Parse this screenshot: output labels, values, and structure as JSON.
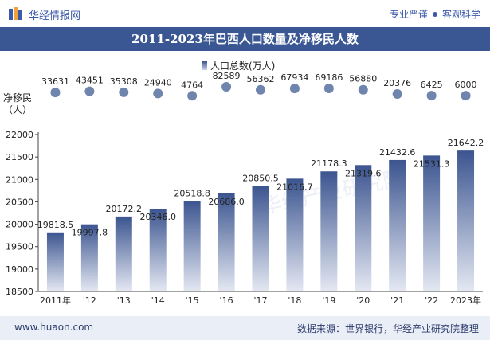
{
  "header": {
    "brand": "华经情报网",
    "slogan_left": "专业严谨",
    "slogan_right": "客观科学"
  },
  "title": "2011-2023年巴西人口数量及净移民人数",
  "footer": {
    "site": "www.huaon.com",
    "source": "数据来源：世界银行，华经产业研究院整理"
  },
  "watermark": "华经产业研究院",
  "colors": {
    "title_bg": "#3a5793",
    "bar_top": "#3c5590",
    "bar_bottom": "#e4e8f2",
    "dot": "#6f85ae",
    "footer_bg": "#eaeef6"
  },
  "chart_data": {
    "type": "bar",
    "categories": [
      "2011年",
      "'12",
      "'13",
      "'14",
      "'15",
      "'16",
      "'17",
      "'18",
      "'19",
      "'20",
      "'21",
      "'22",
      "2023年"
    ],
    "series": [
      {
        "name": "人口总数(万人)",
        "type": "bar",
        "values": [
          19818.5,
          19997.8,
          20172.2,
          20346.0,
          20518.8,
          20686.0,
          20850.5,
          21016.7,
          21178.3,
          21319.6,
          21432.6,
          21531.3,
          21642.2
        ]
      },
      {
        "name": "净移民（人）",
        "type": "dot",
        "values": [
          33631,
          43451,
          35308,
          24940,
          4764,
          82589,
          56362,
          67934,
          69186,
          56880,
          20376,
          6425,
          6000
        ]
      }
    ],
    "ylim": [
      18500,
      22000
    ],
    "yticks": [
      18500,
      19000,
      19500,
      20000,
      20500,
      21000,
      21500,
      22000
    ],
    "legend": {
      "label": "人口总数(万人)",
      "position": "top-center"
    },
    "top_label": "净移民\n（人）"
  }
}
